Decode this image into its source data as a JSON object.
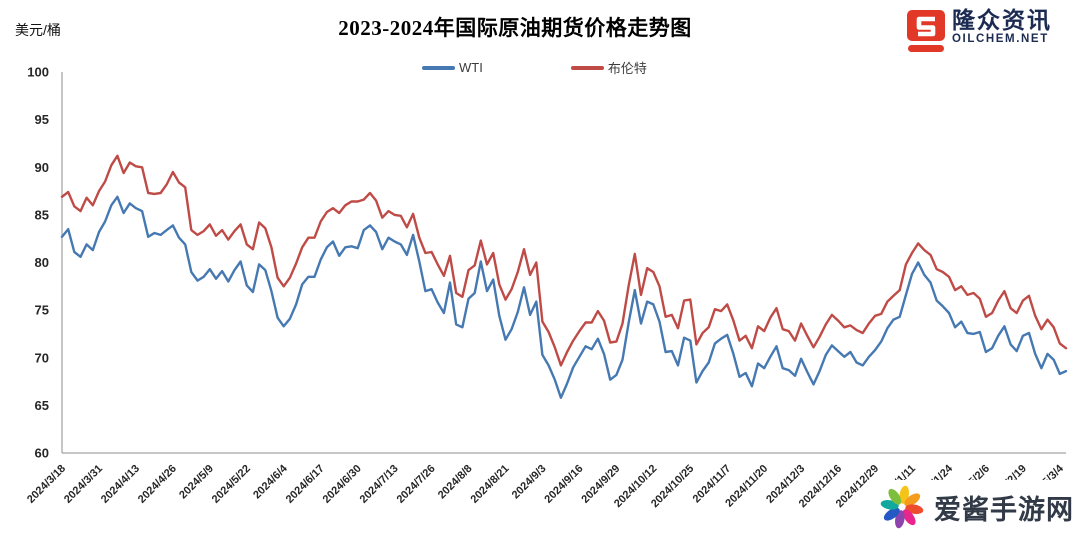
{
  "header": {
    "title": "2023-2024年国际原油期货价格走势图",
    "unit_label": "美元/桶"
  },
  "legend": [
    {
      "label": "WTI",
      "color": "#4679b2"
    },
    {
      "label": "布伦特",
      "color": "#bf4b47"
    }
  ],
  "logo": {
    "name_text": "隆众资讯",
    "domain_text": "OILCHEM.NET",
    "icon_color": "#e13828",
    "text_color": "#1c2b52"
  },
  "watermark": {
    "text": "爱酱手游网",
    "text_color": "#323a48",
    "petal_colors": [
      "#f6c419",
      "#f49d1d",
      "#ed4c2e",
      "#e8258d",
      "#8e44ad",
      "#2458c5",
      "#13a89e",
      "#7dbf3c"
    ]
  },
  "chart_data": {
    "type": "line",
    "title": "2023-2024年国际原油期货价格走势图",
    "ylabel": "美元/桶",
    "ylim": [
      60,
      100
    ],
    "ytick_step": 5,
    "grid": false,
    "legend_position": "top-center",
    "points_per_tick": 6,
    "x_tick_labels": [
      "2024/3/18",
      "2024/3/31",
      "2024/4/13",
      "2024/4/26",
      "2024/5/9",
      "2024/5/22",
      "2024/6/4",
      "2024/6/17",
      "2024/6/30",
      "2024/7/13",
      "2024/7/26",
      "2024/8/8",
      "2024/8/21",
      "2024/9/3",
      "2024/9/16",
      "2024/9/29",
      "2024/10/12",
      "2024/10/25",
      "2024/11/7",
      "2024/11/20",
      "2024/12/3",
      "2024/12/16",
      "2024/12/29",
      "2025/1/11",
      "2025/1/24",
      "2025/2/6",
      "2025/2/19",
      "2025/3/4"
    ],
    "series": [
      {
        "name": "WTI",
        "color": "#4679b2",
        "values": [
          82.7,
          83.5,
          81.1,
          80.6,
          81.9,
          81.3,
          83.2,
          84.3,
          86.0,
          86.9,
          85.2,
          86.2,
          85.7,
          85.4,
          82.7,
          83.1,
          82.9,
          83.4,
          83.9,
          82.6,
          81.9,
          79.0,
          78.1,
          78.5,
          79.3,
          78.3,
          79.1,
          78.0,
          79.2,
          80.1,
          77.6,
          76.9,
          79.8,
          79.2,
          77.0,
          74.2,
          73.3,
          74.1,
          75.6,
          77.7,
          78.5,
          78.5,
          80.3,
          81.6,
          82.2,
          80.7,
          81.6,
          81.7,
          81.5,
          83.4,
          83.9,
          83.2,
          81.4,
          82.6,
          82.2,
          81.9,
          80.8,
          82.9,
          80.1,
          77.0,
          77.2,
          75.8,
          74.7,
          77.9,
          73.5,
          73.2,
          76.2,
          76.8,
          80.1,
          77.0,
          78.2,
          74.4,
          71.9,
          73.0,
          74.8,
          77.4,
          74.5,
          75.9,
          70.3,
          69.2,
          67.7,
          65.8,
          67.3,
          69.0,
          70.1,
          71.2,
          70.9,
          72.0,
          70.4,
          67.7,
          68.2,
          69.8,
          73.7,
          77.1,
          73.6,
          75.9,
          75.6,
          73.8,
          70.6,
          70.7,
          69.2,
          72.1,
          71.8,
          67.4,
          68.6,
          69.5,
          71.5,
          72.0,
          72.4,
          70.4,
          68.0,
          68.4,
          67.0,
          69.4,
          68.9,
          70.1,
          71.2,
          68.9,
          68.7,
          68.1,
          69.9,
          68.5,
          67.2,
          68.6,
          70.3,
          71.3,
          70.7,
          70.1,
          70.6,
          69.5,
          69.2,
          70.1,
          70.8,
          71.7,
          73.1,
          74.0,
          74.3,
          76.6,
          78.8,
          80.0,
          78.7,
          77.9,
          76.0,
          75.4,
          74.7,
          73.2,
          73.8,
          72.6,
          72.5,
          72.7,
          70.6,
          71.0,
          72.3,
          73.3,
          71.4,
          70.7,
          72.3,
          72.6,
          70.4,
          68.9,
          70.4,
          69.8,
          68.3,
          68.6
        ]
      },
      {
        "name": "布伦特",
        "color": "#bf4b47",
        "values": [
          86.9,
          87.4,
          85.9,
          85.4,
          86.8,
          86.0,
          87.5,
          88.5,
          90.2,
          91.2,
          89.4,
          90.5,
          90.1,
          90.0,
          87.3,
          87.2,
          87.3,
          88.2,
          89.5,
          88.4,
          87.9,
          83.4,
          82.9,
          83.3,
          84.0,
          82.8,
          83.4,
          82.4,
          83.3,
          84.0,
          81.9,
          81.4,
          84.2,
          83.6,
          81.6,
          78.4,
          77.5,
          78.4,
          79.9,
          81.6,
          82.6,
          82.6,
          84.3,
          85.3,
          85.7,
          85.2,
          86.0,
          86.4,
          86.4,
          86.6,
          87.3,
          86.5,
          84.7,
          85.4,
          85.0,
          84.9,
          83.7,
          85.1,
          82.6,
          81.0,
          81.1,
          79.8,
          78.6,
          80.7,
          76.8,
          76.4,
          79.2,
          79.7,
          82.3,
          79.8,
          81.0,
          77.7,
          76.1,
          77.2,
          79.0,
          81.4,
          78.7,
          80.0,
          73.8,
          72.7,
          71.1,
          69.2,
          70.6,
          71.8,
          72.8,
          73.7,
          73.7,
          74.9,
          73.9,
          71.6,
          71.7,
          73.6,
          77.6,
          80.9,
          76.6,
          79.4,
          79.0,
          77.5,
          74.3,
          74.5,
          73.1,
          76.0,
          76.1,
          71.4,
          72.6,
          73.2,
          75.1,
          74.9,
          75.6,
          73.9,
          71.8,
          72.3,
          71.0,
          73.3,
          72.8,
          74.2,
          75.2,
          73.0,
          72.8,
          71.8,
          73.6,
          72.3,
          71.1,
          72.2,
          73.5,
          74.5,
          73.9,
          73.2,
          73.4,
          72.9,
          72.6,
          73.6,
          74.4,
          74.6,
          75.9,
          76.5,
          77.1,
          79.8,
          81.0,
          82.0,
          81.3,
          80.8,
          79.3,
          79.0,
          78.5,
          77.1,
          77.5,
          76.6,
          76.8,
          76.2,
          74.3,
          74.7,
          76.0,
          77.0,
          75.2,
          74.7,
          76.0,
          76.5,
          74.4,
          73.0,
          74.0,
          73.2,
          71.5,
          71.0
        ]
      }
    ]
  }
}
